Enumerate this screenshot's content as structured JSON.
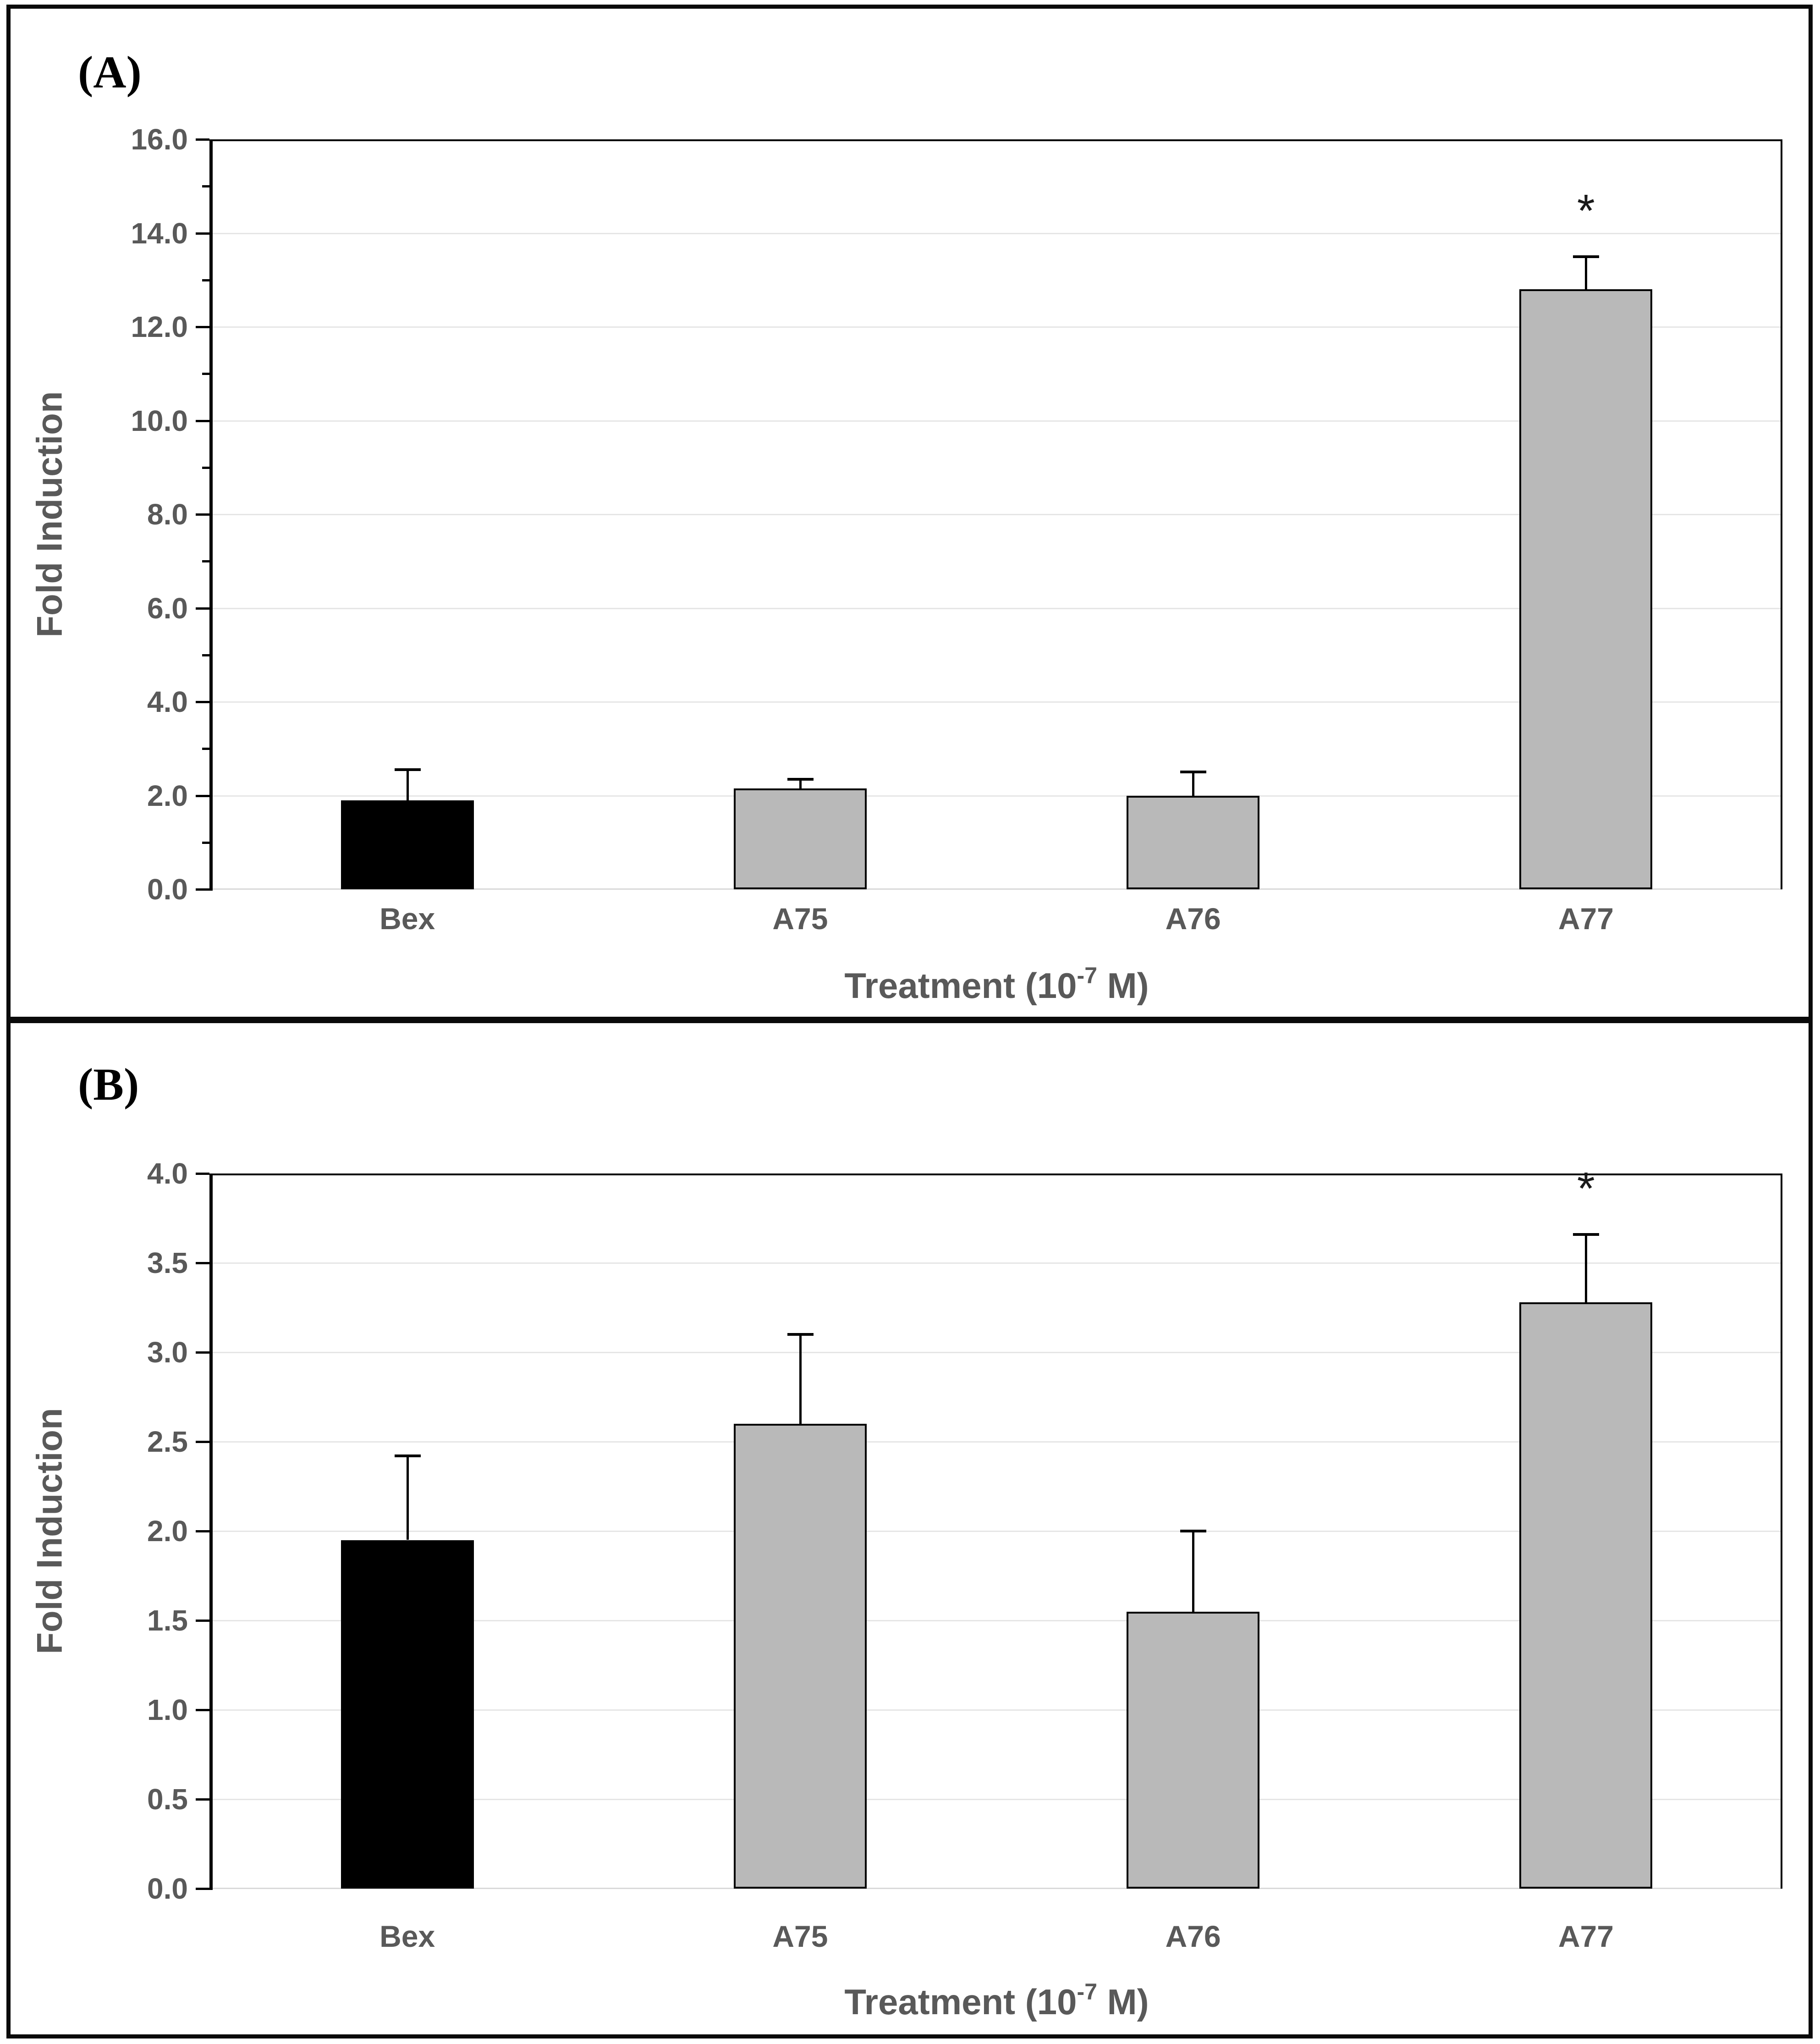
{
  "figure": {
    "description_colors": {
      "background": "#FFFFFF",
      "border_black": "#0A0A0A",
      "text_gray": "#595959",
      "gridline_gray": "#E6E6E6",
      "axis_baseline_gray": "#D9D9D9",
      "bar_gray": "#B9B9B9",
      "bar_black": "#000000"
    }
  },
  "chart_data": [
    {
      "type": "bar",
      "panel_label": "(A)",
      "title": "",
      "categories": [
        "Bex",
        "A75",
        "A76",
        "A77"
      ],
      "values": [
        1.9,
        2.15,
        2.0,
        12.8
      ],
      "errors_up": [
        0.65,
        0.2,
        0.5,
        0.7
      ],
      "significance": [
        "",
        "",
        "",
        "*"
      ],
      "bar_colors": [
        "#000000",
        "#B9B9B9",
        "#B9B9B9",
        "#B9B9B9"
      ],
      "ylabel": "Fold Induction",
      "xlabel": {
        "prefix": "Treatment (10",
        "sup": "-7",
        "suffix": " M)"
      },
      "ylim": [
        0,
        16
      ],
      "ytick_step": 2,
      "minor_tick_step": 1,
      "ytick_labels": [
        "0.0",
        "2.0",
        "4.0",
        "6.0",
        "8.0",
        "10.0",
        "12.0",
        "14.0",
        "16.0"
      ],
      "grid": true,
      "legend": null,
      "error_bars": "upper-only"
    },
    {
      "type": "bar",
      "panel_label": "(B)",
      "title": "",
      "categories": [
        "Bex",
        "A75",
        "A76",
        "A77"
      ],
      "values": [
        1.95,
        2.6,
        1.55,
        3.28
      ],
      "errors_up": [
        0.47,
        0.5,
        0.45,
        0.38
      ],
      "significance": [
        "",
        "",
        "",
        "*"
      ],
      "bar_colors": [
        "#000000",
        "#B9B9B9",
        "#B9B9B9",
        "#B9B9B9"
      ],
      "ylabel": "Fold Induction",
      "xlabel": {
        "prefix": "Treatment (10",
        "sup": "-7",
        "suffix": " M)"
      },
      "ylim": [
        0,
        4
      ],
      "ytick_step": 0.5,
      "minor_tick_step": null,
      "ytick_labels": [
        "0.0",
        "0.5",
        "1.0",
        "1.5",
        "2.0",
        "2.5",
        "3.0",
        "3.5",
        "4.0"
      ],
      "grid": true,
      "legend": null,
      "error_bars": "upper-only"
    }
  ]
}
